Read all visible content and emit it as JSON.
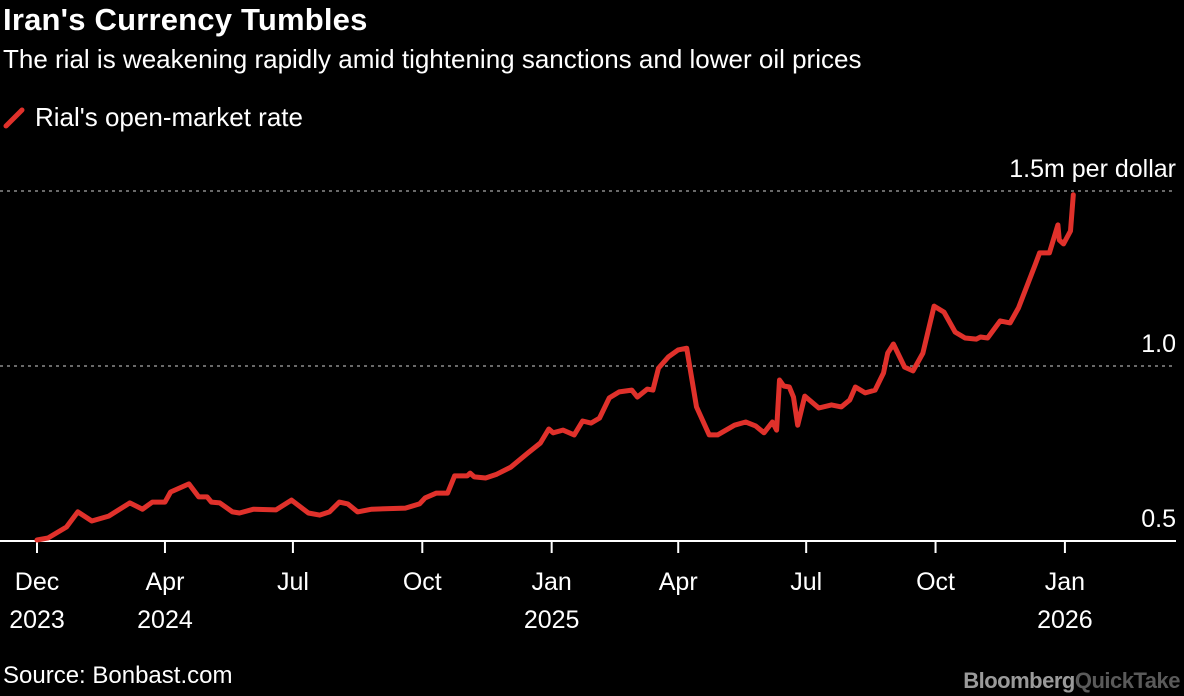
{
  "chart_data": {
    "type": "line",
    "title": "Iran's Currency Tumbles",
    "subtitle": "The rial is weakening rapidly amid tightening sanctions and lower oil prices",
    "source": "Source: Bonbast.com",
    "brand": {
      "primary": "Bloomberg",
      "secondary": "QuickTake"
    },
    "legend_placement": "top-left",
    "grid": "horizontal dotted",
    "series": [
      {
        "name": "Rial's open-market rate",
        "color": "#e0312b",
        "points": [
          [
            "2024-01-01",
            0.503
          ],
          [
            "2024-01-09",
            0.509
          ],
          [
            "2024-01-22",
            0.54
          ],
          [
            "2024-01-30",
            0.583
          ],
          [
            "2024-02-09",
            0.557
          ],
          [
            "2024-02-21",
            0.571
          ],
          [
            "2024-03-07",
            0.609
          ],
          [
            "2024-03-16",
            0.591
          ],
          [
            "2024-03-23",
            0.611
          ],
          [
            "2024-04-01",
            0.611
          ],
          [
            "2024-04-05",
            0.64
          ],
          [
            "2024-04-18",
            0.663
          ],
          [
            "2024-04-25",
            0.626
          ],
          [
            "2024-05-01",
            0.626
          ],
          [
            "2024-05-04",
            0.611
          ],
          [
            "2024-05-10",
            0.609
          ],
          [
            "2024-05-19",
            0.583
          ],
          [
            "2024-05-24",
            0.58
          ],
          [
            "2024-06-03",
            0.591
          ],
          [
            "2024-06-19",
            0.589
          ],
          [
            "2024-06-30",
            0.617
          ],
          [
            "2024-07-12",
            0.58
          ],
          [
            "2024-07-20",
            0.574
          ],
          [
            "2024-07-27",
            0.583
          ],
          [
            "2024-08-03",
            0.611
          ],
          [
            "2024-08-09",
            0.606
          ],
          [
            "2024-08-16",
            0.583
          ],
          [
            "2024-08-26",
            0.591
          ],
          [
            "2024-09-19",
            0.594
          ],
          [
            "2024-09-29",
            0.606
          ],
          [
            "2024-10-03",
            0.623
          ],
          [
            "2024-10-11",
            0.637
          ],
          [
            "2024-10-19",
            0.637
          ],
          [
            "2024-10-24",
            0.686
          ],
          [
            "2024-11-02",
            0.686
          ],
          [
            "2024-11-04",
            0.694
          ],
          [
            "2024-11-07",
            0.683
          ],
          [
            "2024-11-15",
            0.68
          ],
          [
            "2024-11-23",
            0.691
          ],
          [
            "2024-12-03",
            0.711
          ],
          [
            "2024-12-15",
            0.751
          ],
          [
            "2024-12-24",
            0.78
          ],
          [
            "2024-12-30",
            0.82
          ],
          [
            "2025-01-02",
            0.809
          ],
          [
            "2025-01-09",
            0.817
          ],
          [
            "2025-01-17",
            0.803
          ],
          [
            "2025-01-23",
            0.843
          ],
          [
            "2025-01-29",
            0.837
          ],
          [
            "2025-02-04",
            0.851
          ],
          [
            "2025-02-11",
            0.909
          ],
          [
            "2025-02-18",
            0.926
          ],
          [
            "2025-02-27",
            0.931
          ],
          [
            "2025-03-03",
            0.911
          ],
          [
            "2025-03-10",
            0.934
          ],
          [
            "2025-03-14",
            0.931
          ],
          [
            "2025-03-18",
            0.994
          ],
          [
            "2025-03-25",
            1.026
          ],
          [
            "2025-04-01",
            1.046
          ],
          [
            "2025-04-07",
            1.051
          ],
          [
            "2025-04-09",
            1.003
          ],
          [
            "2025-04-14",
            0.883
          ],
          [
            "2025-04-23",
            0.803
          ],
          [
            "2025-04-29",
            0.803
          ],
          [
            "2025-05-11",
            0.831
          ],
          [
            "2025-05-19",
            0.84
          ],
          [
            "2025-05-26",
            0.829
          ],
          [
            "2025-06-01",
            0.809
          ],
          [
            "2025-06-07",
            0.84
          ],
          [
            "2025-06-10",
            0.817
          ],
          [
            "2025-06-12",
            0.96
          ],
          [
            "2025-06-15",
            0.943
          ],
          [
            "2025-06-19",
            0.94
          ],
          [
            "2025-06-22",
            0.911
          ],
          [
            "2025-06-25",
            0.831
          ],
          [
            "2025-06-30",
            0.914
          ],
          [
            "2025-07-10",
            0.88
          ],
          [
            "2025-07-19",
            0.889
          ],
          [
            "2025-07-26",
            0.883
          ],
          [
            "2025-08-01",
            0.903
          ],
          [
            "2025-08-05",
            0.94
          ],
          [
            "2025-08-12",
            0.923
          ],
          [
            "2025-08-19",
            0.931
          ],
          [
            "2025-08-25",
            0.98
          ],
          [
            "2025-08-28",
            1.037
          ],
          [
            "2025-09-01",
            1.063
          ],
          [
            "2025-09-09",
            0.997
          ],
          [
            "2025-09-15",
            0.986
          ],
          [
            "2025-09-22",
            1.037
          ],
          [
            "2025-09-30",
            1.171
          ],
          [
            "2025-10-07",
            1.154
          ],
          [
            "2025-10-15",
            1.097
          ],
          [
            "2025-10-22",
            1.08
          ],
          [
            "2025-10-30",
            1.077
          ],
          [
            "2025-11-02",
            1.083
          ],
          [
            "2025-11-07",
            1.08
          ],
          [
            "2025-11-16",
            1.129
          ],
          [
            "2025-11-23",
            1.123
          ],
          [
            "2025-11-29",
            1.166
          ],
          [
            "2025-12-11",
            1.291
          ],
          [
            "2025-12-14",
            1.323
          ],
          [
            "2025-12-21",
            1.323
          ],
          [
            "2025-12-27",
            1.403
          ],
          [
            "2025-12-28",
            1.36
          ],
          [
            "2025-12-31",
            1.349
          ],
          [
            "2026-01-05",
            1.386
          ],
          [
            "2026-01-07",
            1.489
          ]
        ]
      }
    ],
    "x_axis": {
      "range": [
        "2024-01-01",
        "2026-03-21"
      ],
      "ticks": [
        {
          "date": "2024-01-01",
          "label": [
            "Dec",
            "2023"
          ]
        },
        {
          "date": "2024-04-01",
          "label": [
            "Apr",
            "2024"
          ]
        },
        {
          "date": "2024-07-01",
          "label": [
            "Jul"
          ]
        },
        {
          "date": "2024-10-01",
          "label": [
            "Oct"
          ]
        },
        {
          "date": "2025-01-01",
          "label": [
            "Jan",
            "2025"
          ]
        },
        {
          "date": "2025-04-01",
          "label": [
            "Apr"
          ]
        },
        {
          "date": "2025-07-01",
          "label": [
            "Jul"
          ]
        },
        {
          "date": "2025-10-01",
          "label": [
            "Oct"
          ]
        },
        {
          "date": "2026-01-01",
          "label": [
            "Jan",
            "2026"
          ]
        }
      ]
    },
    "y_axis": {
      "range": [
        0.5,
        1.5
      ],
      "ticks": [
        {
          "value": 0.5,
          "label": "0.5"
        },
        {
          "value": 1.0,
          "label": "1.0"
        },
        {
          "value": 1.5,
          "label": "1.5m per dollar"
        }
      ]
    }
  }
}
